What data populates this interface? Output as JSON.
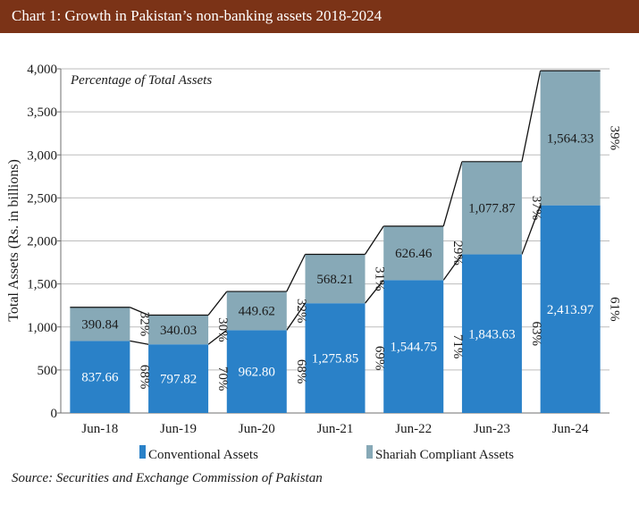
{
  "header": {
    "title": "Chart 1: Growth in Pakistan’s non-banking assets 2018-2024"
  },
  "source": "Source: Securities and Exchange Commission of Pakistan",
  "chart_data": {
    "type": "bar",
    "stacked": true,
    "categories": [
      "Jun-18",
      "Jun-19",
      "Jun-20",
      "Jun-21",
      "Jun-22",
      "Jun-23",
      "Jun-24"
    ],
    "series": [
      {
        "name": "Conventional Assets",
        "color": "#2a81c8",
        "values": [
          837.66,
          797.82,
          962.8,
          1275.85,
          1544.75,
          1843.63,
          2413.97
        ],
        "value_labels": [
          "837.66",
          "797.82",
          "962.80",
          "1,275.85",
          "1,544.75",
          "1,843.63",
          "2,413.97"
        ],
        "percent_labels": [
          "68%",
          "70%",
          "68%",
          "69%",
          "71%",
          "63%",
          "61%"
        ]
      },
      {
        "name": "Shariah Compliant Assets",
        "color": "#87a9b7",
        "values": [
          390.84,
          340.03,
          449.62,
          568.21,
          626.46,
          1077.87,
          1564.33
        ],
        "value_labels": [
          "390.84",
          "340.03",
          "449.62",
          "568.21",
          "626.46",
          "1,077.87",
          "1,564.33"
        ],
        "percent_labels": [
          "32%",
          "30%",
          "32%",
          "31%",
          "29%",
          "37%",
          "39%"
        ]
      }
    ],
    "annotation": "Percentage of Total Assets",
    "ylabel": "Total Assets  (Rs. in billions)",
    "xlabel": "",
    "ylim": [
      0,
      4000
    ],
    "yticks": [
      0,
      500,
      1000,
      1500,
      2000,
      2500,
      3000,
      3500,
      4000
    ],
    "ytick_labels": [
      "0",
      "500",
      "1,000",
      "1,500",
      "2,000",
      "2,500",
      "3,000",
      "3,500",
      "4,000"
    ],
    "grid": true,
    "legend_position": "bottom"
  }
}
